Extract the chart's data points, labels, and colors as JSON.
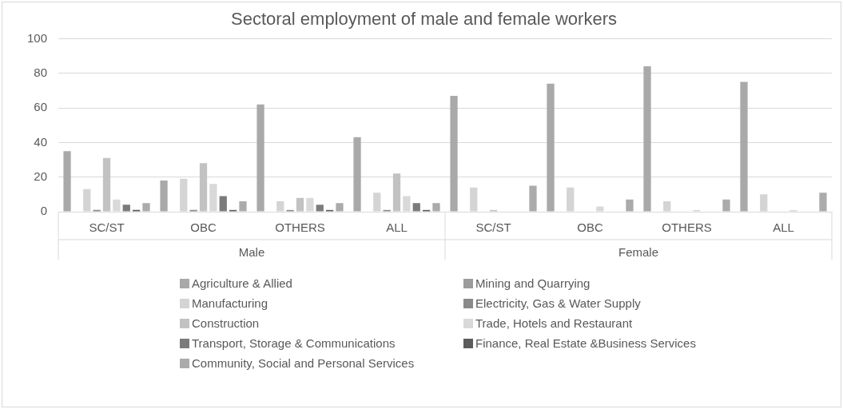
{
  "chart_data": {
    "type": "bar",
    "title": "Sectoral employment of male and female workers",
    "categories": [
      "SC/ST",
      "OBC",
      "OTHERS",
      "ALL",
      "SC/ST",
      "OBC",
      "OTHERS",
      "ALL"
    ],
    "annotations": [
      "Male",
      "Female"
    ],
    "series": [
      {
        "name": "Agriculture & Allied",
        "color": "#a9a9a9",
        "values": [
          35,
          18,
          62,
          43,
          67,
          74,
          84,
          75
        ]
      },
      {
        "name": "Mining and Quarrying",
        "color": "#9c9c9c",
        "values": [
          0,
          0,
          0,
          0,
          0,
          0,
          0,
          0
        ]
      },
      {
        "name": "Manufacturing",
        "color": "#d4d4d4",
        "values": [
          13,
          19,
          6,
          11,
          14,
          14,
          6,
          10
        ]
      },
      {
        "name": "Electricity, Gas & Water Supply",
        "color": "#8a8a8a",
        "values": [
          1,
          1,
          1,
          1,
          0,
          0,
          0,
          0
        ]
      },
      {
        "name": "Construction",
        "color": "#c2c2c2",
        "values": [
          31,
          28,
          8,
          22,
          1,
          0,
          0,
          0
        ]
      },
      {
        "name": "Trade, Hotels and Restaurant",
        "color": "#d9d9d9",
        "values": [
          7,
          16,
          8,
          9,
          0,
          3,
          1,
          1
        ]
      },
      {
        "name": "Transport, Storage & Communications",
        "color": "#7b7b7b",
        "values": [
          4,
          9,
          4,
          5,
          0,
          0,
          0,
          0
        ]
      },
      {
        "name": "Finance, Real Estate &Business Services",
        "color": "#5c5c5c",
        "values": [
          1,
          1,
          1,
          1,
          0,
          0,
          0,
          0
        ]
      },
      {
        "name": "Community, Social and Personal Services",
        "color": "#ababab",
        "values": [
          5,
          6,
          5,
          5,
          15,
          7,
          7,
          11
        ]
      }
    ],
    "ylim": [
      0,
      100
    ],
    "yticks": [
      0,
      20,
      40,
      60,
      80,
      100
    ],
    "grid": "y",
    "legend": "bottom"
  }
}
